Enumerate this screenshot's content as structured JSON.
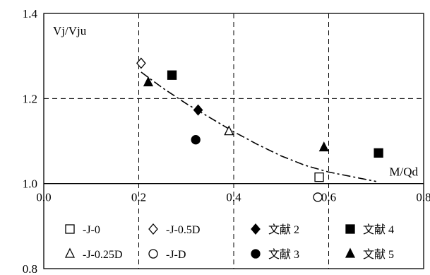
{
  "chart_data": {
    "type": "scatter",
    "xlabel": "M/Qd",
    "ylabel": "Vj/Vju",
    "xlim": [
      0,
      0.8
    ],
    "ylim": [
      0.8,
      1.4
    ],
    "xticks": [
      "0.0",
      "0.2",
      "0.4",
      "0.6",
      "0.8"
    ],
    "yticks": [
      "0.8",
      "1.0",
      "1.2",
      "1.4"
    ],
    "x_axis_crosses_y_at": 1.0,
    "grid": "dashed",
    "legend_position": "bottom, inside plot",
    "series": [
      {
        "name": "-J-0",
        "marker": "open-square",
        "points": [
          {
            "x": 0.58,
            "y": 1.015
          }
        ]
      },
      {
        "name": "-J-0.5D",
        "marker": "open-diamond",
        "points": [
          {
            "x": 0.205,
            "y": 1.283
          }
        ]
      },
      {
        "name": "文献 2",
        "marker": "filled-diamond",
        "points": [
          {
            "x": 0.325,
            "y": 1.173
          }
        ]
      },
      {
        "name": "文献 4",
        "marker": "filled-square",
        "points": [
          {
            "x": 0.27,
            "y": 1.255
          },
          {
            "x": 0.705,
            "y": 1.072
          }
        ]
      },
      {
        "name": "-J-0.25D",
        "marker": "open-triangle",
        "points": [
          {
            "x": 0.39,
            "y": 1.123
          }
        ]
      },
      {
        "name": "-J-D",
        "marker": "open-circle",
        "points": [
          {
            "x": 0.577,
            "y": 0.968
          }
        ]
      },
      {
        "name": "文献 3",
        "marker": "filled-circle",
        "points": [
          {
            "x": 0.32,
            "y": 1.103
          }
        ]
      },
      {
        "name": "文献 5",
        "marker": "filled-triangle",
        "points": [
          {
            "x": 0.22,
            "y": 1.238
          },
          {
            "x": 0.59,
            "y": 1.085
          }
        ]
      }
    ],
    "trend_line": {
      "style": "dash-dot",
      "points": [
        {
          "x": 0.205,
          "y": 1.262
        },
        {
          "x": 0.25,
          "y": 1.225
        },
        {
          "x": 0.3,
          "y": 1.188
        },
        {
          "x": 0.35,
          "y": 1.155
        },
        {
          "x": 0.4,
          "y": 1.122
        },
        {
          "x": 0.45,
          "y": 1.092
        },
        {
          "x": 0.5,
          "y": 1.065
        },
        {
          "x": 0.55,
          "y": 1.043
        },
        {
          "x": 0.6,
          "y": 1.027
        },
        {
          "x": 0.65,
          "y": 1.016
        },
        {
          "x": 0.7,
          "y": 1.005
        }
      ]
    }
  }
}
